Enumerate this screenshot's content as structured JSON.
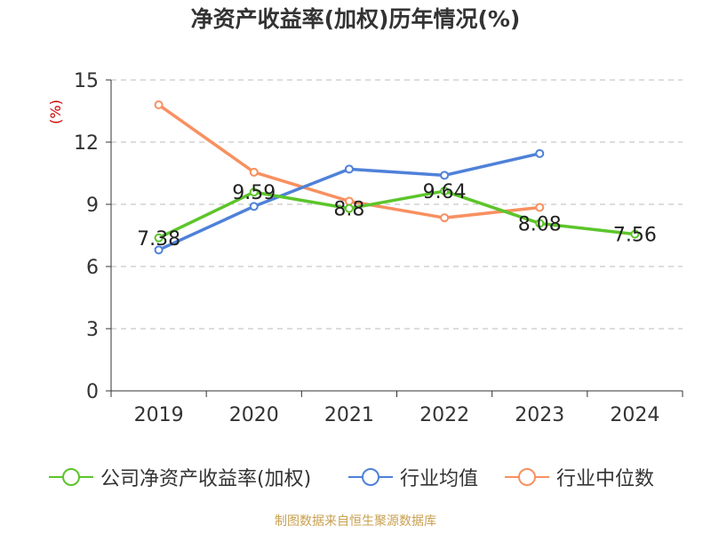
{
  "colors": {
    "company": "#5cc52b",
    "industry_avg": "#4f81d9",
    "industry_median": "#f89060",
    "axis": "#333333",
    "grid": "#bbbbbb",
    "unit": "#cc0000",
    "source": "#c8a050"
  },
  "chart_data": {
    "type": "line",
    "title": "净资产收益率(加权)历年情况(%)",
    "ylabel": "(%)",
    "categories": [
      "2019",
      "2020",
      "2021",
      "2022",
      "2023",
      "2024"
    ],
    "ylim": [
      0,
      15
    ],
    "yticks": [
      0,
      3,
      6,
      9,
      12,
      15
    ],
    "grid": true,
    "legend_position": "bottom",
    "series": [
      {
        "name": "公司净资产收益率(加权)",
        "color_key": "company",
        "values": [
          7.38,
          9.59,
          8.8,
          9.64,
          8.08,
          7.56
        ],
        "show_labels": true
      },
      {
        "name": "行业均值",
        "color_key": "industry_avg",
        "values": [
          6.8,
          8.9,
          10.7,
          10.4,
          11.45,
          null
        ],
        "show_labels": false
      },
      {
        "name": "行业中位数",
        "color_key": "industry_median",
        "values": [
          13.8,
          10.55,
          9.15,
          8.35,
          8.85,
          null
        ],
        "show_labels": false
      }
    ],
    "data_labels": [
      "7.38",
      "9.59",
      "8.8",
      "9.64",
      "8.08",
      "7.56"
    ]
  },
  "source_text": "制图数据来自恒生聚源数据库"
}
